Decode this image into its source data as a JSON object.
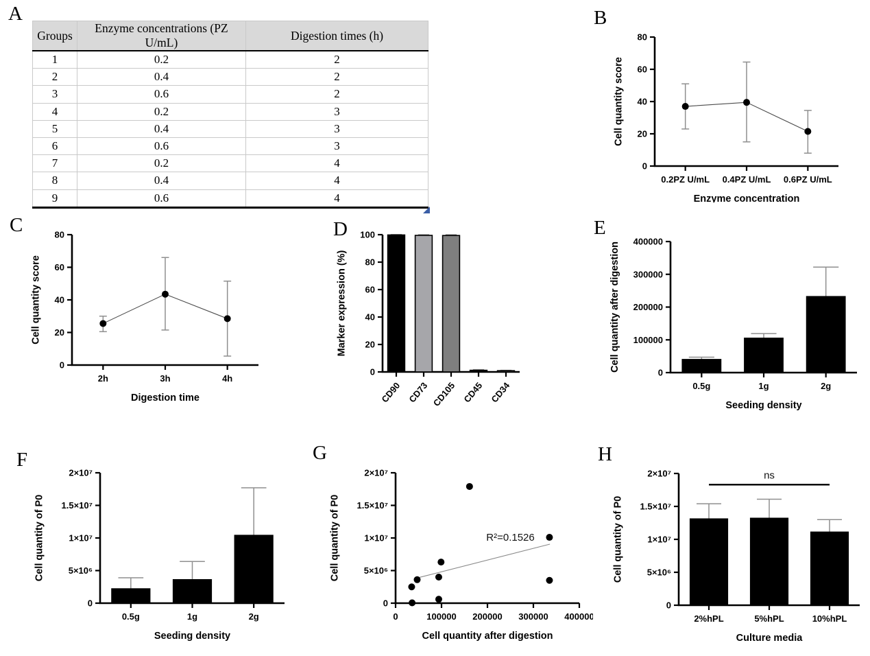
{
  "panels": {
    "A": {
      "label": "A"
    },
    "B": {
      "label": "B"
    },
    "C": {
      "label": "C"
    },
    "D": {
      "label": "D"
    },
    "E": {
      "label": "E"
    },
    "F": {
      "label": "F"
    },
    "G": {
      "label": "G"
    },
    "H": {
      "label": "H"
    }
  },
  "colors": {
    "bar_black": "#000000",
    "bar_gray_light": "#a6a6aa",
    "bar_gray": "#7f7f7f",
    "error_bar": "#8f8f8f",
    "table_header_bg": "#d9d9d9",
    "table_handle_blue": "#3b5ea6"
  },
  "table": {
    "headers": [
      "Groups",
      "Enzyme concentrations (PZ U/mL)",
      "Digestion times (h)"
    ],
    "rows": [
      [
        "1",
        "0.2",
        "2"
      ],
      [
        "2",
        "0.4",
        "2"
      ],
      [
        "3",
        "0.6",
        "2"
      ],
      [
        "4",
        "0.2",
        "3"
      ],
      [
        "5",
        "0.4",
        "3"
      ],
      [
        "6",
        "0.6",
        "3"
      ],
      [
        "7",
        "0.2",
        "4"
      ],
      [
        "8",
        "0.4",
        "4"
      ],
      [
        "9",
        "0.6",
        "4"
      ]
    ]
  },
  "chart_data": [
    {
      "panel": "B",
      "type": "line",
      "title": "",
      "xlabel": "Enzyme concentration",
      "ylabel": "Cell quantity score",
      "categories": [
        "0.2PZ U/mL",
        "0.4PZ U/mL",
        "0.6PZ U/mL"
      ],
      "values": [
        37,
        39.5,
        21.5
      ],
      "error_low": [
        23,
        15,
        8
      ],
      "error_high": [
        51,
        64.5,
        34.5
      ],
      "ylim": [
        0,
        80
      ],
      "yticks": [
        0,
        20,
        40,
        60,
        80
      ],
      "ytick_labels": [
        "0",
        "20",
        "40",
        "60",
        "80"
      ]
    },
    {
      "panel": "C",
      "type": "line",
      "title": "",
      "xlabel": "Digestion time",
      "ylabel": "Cell quantity score",
      "categories": [
        "2h",
        "3h",
        "4h"
      ],
      "values": [
        25.5,
        43.5,
        28.5
      ],
      "error_low": [
        20.5,
        21.5,
        5.5
      ],
      "error_high": [
        30,
        66,
        51.5
      ],
      "ylim": [
        0,
        80
      ],
      "yticks": [
        0,
        20,
        40,
        60,
        80
      ],
      "ytick_labels": [
        "0",
        "20",
        "40",
        "60",
        "80"
      ]
    },
    {
      "panel": "D",
      "type": "bar",
      "title": "",
      "xlabel": "",
      "ylabel": "Marker expression (%)",
      "categories": [
        "CD90",
        "CD73",
        "CD105",
        "CD45",
        "CD34"
      ],
      "values": [
        99.8,
        99.5,
        99.4,
        1.2,
        0.9
      ],
      "error_high": [
        100.1,
        100,
        100,
        1.7,
        1.2
      ],
      "bar_colors": [
        "#000000",
        "#a6a6aa",
        "#7f7f7f",
        "#000000",
        "#a8a8a8"
      ],
      "xtick_rotate": -50,
      "ylim": [
        0,
        100
      ],
      "yticks": [
        0,
        20,
        40,
        60,
        80,
        100
      ],
      "ytick_labels": [
        "0",
        "20",
        "40",
        "60",
        "80",
        "100"
      ]
    },
    {
      "panel": "E",
      "type": "bar",
      "title": "",
      "xlabel": "Seeding density",
      "ylabel": "Cell quantity after digestion",
      "categories": [
        "0.5g",
        "1g",
        "2g"
      ],
      "values": [
        40000,
        105000,
        232000
      ],
      "error_high": [
        47000,
        119000,
        322000
      ],
      "ylim": [
        0,
        400000
      ],
      "yticks": [
        0,
        100000,
        200000,
        300000,
        400000
      ],
      "ytick_labels": [
        "0",
        "100000",
        "200000",
        "300000",
        "400000"
      ]
    },
    {
      "panel": "F",
      "type": "bar",
      "title": "",
      "xlabel": "Seeding density",
      "ylabel": "Cell quantity of P0",
      "categories": [
        "0.5g",
        "1g",
        "2g"
      ],
      "values": [
        2200000,
        3600000,
        10400000
      ],
      "error_high": [
        3900000,
        6400000,
        17700000
      ],
      "ylim": [
        0,
        20000000
      ],
      "yticks": [
        0,
        5000000,
        10000000,
        15000000,
        20000000
      ],
      "ytick_labels": [
        "0",
        "5×10⁶",
        "1×10⁷",
        "1.5×10⁷",
        "2×10⁷"
      ]
    },
    {
      "panel": "G",
      "type": "scatter",
      "title": "",
      "xlabel": "Cell quantity after digestion",
      "ylabel": "Cell quantity of P0",
      "points": [
        [
          36000,
          50000
        ],
        [
          35000,
          2500000
        ],
        [
          47000,
          3600000
        ],
        [
          94000,
          600000
        ],
        [
          94000,
          4000000
        ],
        [
          99000,
          6300000
        ],
        [
          161000,
          17900000
        ],
        [
          335000,
          10100000
        ],
        [
          335000,
          3500000
        ]
      ],
      "trend": {
        "x1": 49000,
        "y1": 3900000,
        "x2": 336000,
        "y2": 9050000
      },
      "annotation": {
        "text": "R²=0.1526",
        "x": 250000,
        "y": 9600000
      },
      "xlim": [
        0,
        400000
      ],
      "xticks": [
        0,
        100000,
        200000,
        300000,
        400000
      ],
      "xtick_labels": [
        "0",
        "100000",
        "200000",
        "300000",
        "400000"
      ],
      "ylim": [
        0,
        20000000
      ],
      "yticks": [
        0,
        5000000,
        10000000,
        15000000,
        20000000
      ],
      "ytick_labels": [
        "0",
        "5×10⁶",
        "1×10⁷",
        "1.5×10⁷",
        "2×10⁷"
      ]
    },
    {
      "panel": "H",
      "type": "bar",
      "title": "",
      "xlabel": "Culture media",
      "ylabel": "Cell quantity of P0",
      "categories": [
        "2%hPL",
        "5%hPL",
        "10%hPL"
      ],
      "values": [
        13100000,
        13200000,
        11100000
      ],
      "error_high": [
        15400000,
        16100000,
        13000000
      ],
      "bracket": {
        "from": 0,
        "to": 2,
        "y": 18300000,
        "text": "ns"
      },
      "ylim": [
        0,
        20000000
      ],
      "yticks": [
        0,
        5000000,
        10000000,
        15000000,
        20000000
      ],
      "ytick_labels": [
        "0",
        "5×10⁶",
        "1×10⁷",
        "1.5×10⁷",
        "2×10⁷"
      ]
    }
  ]
}
